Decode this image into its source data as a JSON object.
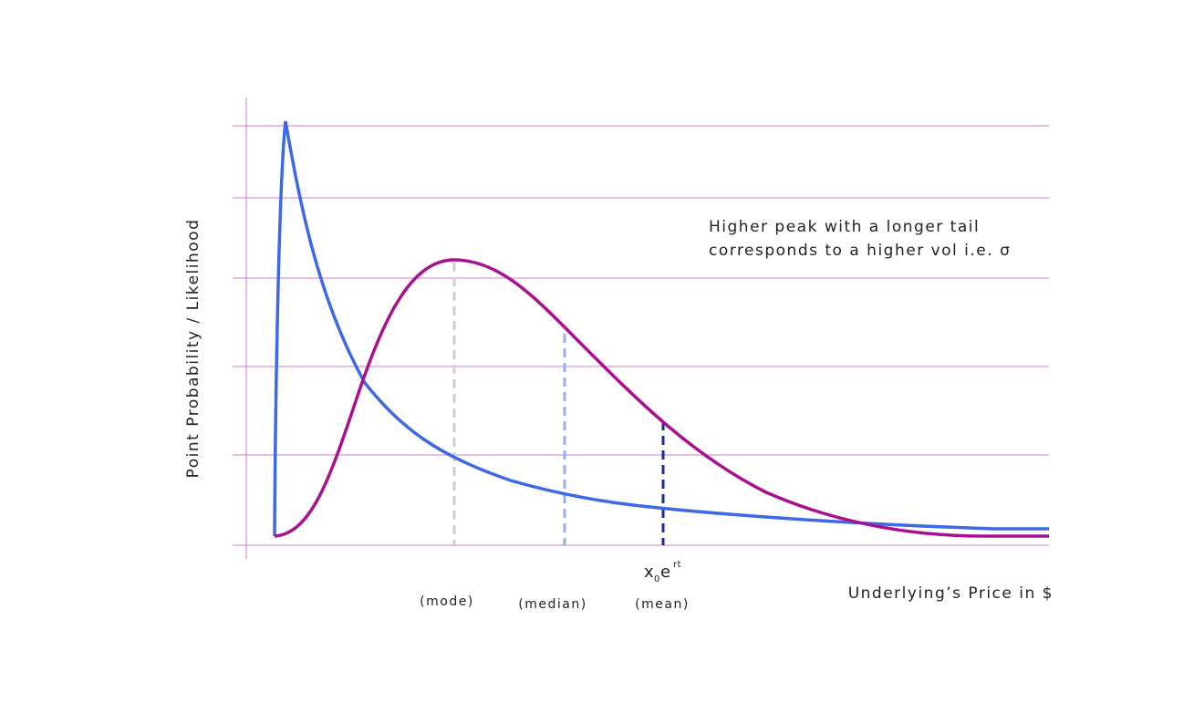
{
  "axes": {
    "y_label": "Point Probability / Likelihood",
    "x_label": "Underlying’s Price in $"
  },
  "annotation": {
    "lines": [
      "Higher peak with a longer tail",
      "corresponds to a higher vol i.e. σ"
    ]
  },
  "markers": {
    "mode": "(mode)",
    "median": "(median)",
    "mean": "(mean)"
  },
  "formula": {
    "base": "x",
    "subscript": "0",
    "exp_base": "e",
    "exponent": "rt"
  }
}
